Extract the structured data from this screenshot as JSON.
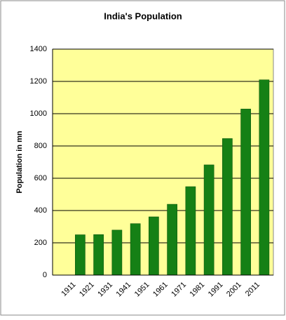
{
  "chart_data": {
    "type": "bar",
    "title": "India's Population",
    "y_label": "Population in mn",
    "categories": [
      "1911",
      "1921",
      "1931",
      "1941",
      "1951",
      "1961",
      "1971",
      "1981",
      "1991",
      "2001",
      "2011"
    ],
    "values": [
      250,
      251,
      279,
      319,
      361,
      439,
      548,
      683,
      846,
      1029,
      1210
    ],
    "color": "#158015",
    "ylim": [
      0,
      1400
    ],
    "yticks": [
      0,
      200,
      400,
      600,
      800,
      1000,
      1200,
      1400
    ],
    "grid": true
  }
}
